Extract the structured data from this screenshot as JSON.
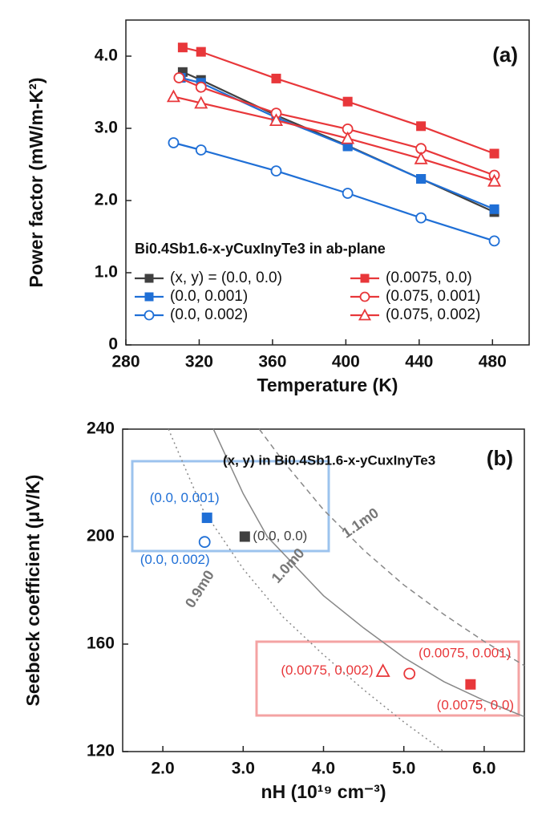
{
  "chart_data": [
    {
      "type": "line",
      "title": "(a)",
      "xlabel": "Temperature (K)",
      "ylabel": "Power factor  (mW/m-K²)",
      "legend_title": "Bi0.4Sb1.6-x-yCuxInyTe3 in ab-plane",
      "xlim": [
        280,
        500
      ],
      "ylim": [
        0,
        4.5
      ],
      "xticks": [
        280,
        320,
        360,
        400,
        440,
        480
      ],
      "yticks": [
        0,
        {
          "value": 1,
          "label": "1.0"
        },
        {
          "value": 2,
          "label": "2.0"
        },
        {
          "value": 3,
          "label": "3.0"
        },
        {
          "value": 4,
          "label": "4.0"
        }
      ],
      "series": [
        {
          "name": "(x, y) = (0.0, 0.0)",
          "color": "#404040",
          "marker": "square",
          "x": [
            311,
            321,
            362,
            401,
            441,
            481
          ],
          "values": [
            3.78,
            3.67,
            3.18,
            2.76,
            2.3,
            1.84
          ]
        },
        {
          "name": "(0.0, 0.001)",
          "color": "#1f6fd6",
          "marker": "square",
          "x": [
            310,
            321,
            362,
            401,
            441,
            481
          ],
          "values": [
            3.7,
            3.63,
            3.15,
            2.75,
            2.3,
            1.88
          ]
        },
        {
          "name": "(0.0, 0.002)",
          "color": "#1f6fd6",
          "marker": "circle-open",
          "x": [
            306,
            321,
            362,
            401,
            441,
            481
          ],
          "values": [
            2.8,
            2.7,
            2.41,
            2.1,
            1.76,
            1.44
          ]
        },
        {
          "name": "(0.0075, 0.0)",
          "color": "#e8373a",
          "marker": "square",
          "x": [
            311,
            321,
            362,
            401,
            441,
            481
          ],
          "values": [
            4.12,
            4.06,
            3.69,
            3.37,
            3.03,
            2.65
          ]
        },
        {
          "name": "(0.075, 0.001)",
          "color": "#e8373a",
          "marker": "circle-open",
          "x": [
            309,
            321,
            362,
            401,
            441,
            481
          ],
          "values": [
            3.7,
            3.57,
            3.21,
            2.99,
            2.72,
            2.35
          ]
        },
        {
          "name": "(0.075, 0.002)",
          "color": "#e8373a",
          "marker": "triangle-open",
          "x": [
            306,
            321,
            362,
            401,
            441,
            481
          ],
          "values": [
            3.44,
            3.35,
            3.11,
            2.86,
            2.58,
            2.27
          ]
        }
      ]
    },
    {
      "type": "scatter",
      "title": "(b)",
      "annotation": "(x, y)  in Bi0.4Sb1.6-x-yCuxInyTe3",
      "xlabel": "nH (10¹⁹ cm⁻³)",
      "ylabel": "Seebeck coefficient  (μV/K)",
      "xlim": [
        1.5,
        6.5
      ],
      "ylim": [
        120,
        240
      ],
      "xticks": [
        {
          "value": 2,
          "label": "2.0"
        },
        {
          "value": 3,
          "label": "3.0"
        },
        {
          "value": 4,
          "label": "4.0"
        },
        {
          "value": 5,
          "label": "5.0"
        },
        {
          "value": 6,
          "label": "6.0"
        }
      ],
      "yticks": [
        120,
        160,
        200,
        240
      ],
      "series": [
        {
          "name": "(0.0, 0.001)",
          "color": "#1f6fd6",
          "marker": "square",
          "x": [
            2.55
          ],
          "values": [
            207
          ]
        },
        {
          "name": "(0.0, 0.002)",
          "color": "#1f6fd6",
          "marker": "circle-open",
          "x": [
            2.52
          ],
          "values": [
            198
          ]
        },
        {
          "name": "(0.0, 0.0)",
          "color": "#404040",
          "marker": "square",
          "x": [
            3.02
          ],
          "values": [
            200
          ]
        },
        {
          "name": "(0.0075, 0.002)",
          "color": "#e8373a",
          "marker": "triangle-open",
          "x": [
            4.74
          ],
          "values": [
            150
          ]
        },
        {
          "name": "(0.0075, 0.001)",
          "color": "#e8373a",
          "marker": "circle-open",
          "x": [
            5.07
          ],
          "values": [
            149
          ]
        },
        {
          "name": "(0.0075, 0.0)",
          "color": "#e8373a",
          "marker": "square",
          "x": [
            5.83
          ],
          "values": [
            145
          ]
        }
      ],
      "curves": [
        {
          "name": "0.9m0",
          "style": "dotted",
          "color": "#888888",
          "x": [
            2.07,
            2.5,
            3.0,
            3.5,
            4.0,
            4.5,
            5.0,
            5.5
          ],
          "values": [
            240,
            210,
            188,
            170,
            156,
            143,
            131,
            120
          ]
        },
        {
          "name": "1.0m0",
          "style": "solid",
          "color": "#888888",
          "x": [
            2.63,
            3.0,
            3.3,
            4.0,
            4.5,
            5.0,
            5.5,
            6.0,
            6.5
          ],
          "values": [
            240,
            216,
            200,
            178,
            166,
            155,
            146,
            139,
            133
          ]
        },
        {
          "name": "1.1m0",
          "style": "dashed",
          "color": "#888888",
          "x": [
            3.2,
            3.5,
            4.0,
            4.5,
            5.0,
            5.5,
            6.0,
            6.5
          ],
          "values": [
            240,
            228,
            210,
            195,
            182,
            171,
            161,
            152
          ]
        }
      ]
    }
  ]
}
